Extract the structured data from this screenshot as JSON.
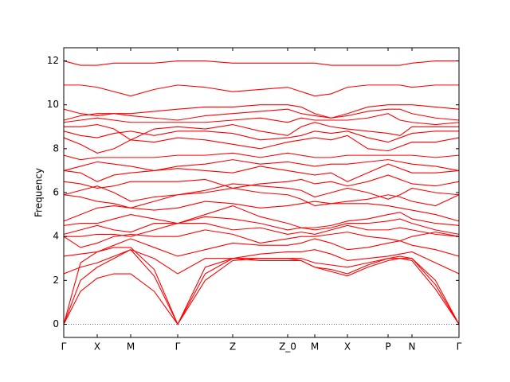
{
  "chart_data": {
    "type": "line",
    "ylabel": "Frequency",
    "x": [
      0,
      21,
      42,
      63,
      84,
      113.5,
      143,
      177.5,
      212,
      246.5,
      281,
      298,
      315,
      335.5,
      356,
      381.5,
      407,
      422,
      437,
      466.5,
      496
    ],
    "xlim": [
      0,
      496
    ],
    "xticks": [
      {
        "value": 0,
        "label": "Γ"
      },
      {
        "value": 42,
        "label": "X"
      },
      {
        "value": 84,
        "label": "M"
      },
      {
        "value": 143,
        "label": "Γ"
      },
      {
        "value": 212,
        "label": "Z"
      },
      {
        "value": 281,
        "label": "Z_0"
      },
      {
        "value": 315,
        "label": "M"
      },
      {
        "value": 356,
        "label": "X"
      },
      {
        "value": 407,
        "label": "P"
      },
      {
        "value": 437,
        "label": "N"
      },
      {
        "value": 496,
        "label": "Γ"
      }
    ],
    "ylim": [
      -0.6,
      12.6
    ],
    "yticks": [
      0,
      2,
      4,
      6,
      8,
      10,
      12
    ],
    "hline": 0,
    "hline_color": "#0000ff",
    "series": [
      {
        "color": "#ff0000",
        "values": [
          0,
          1.5,
          2.1,
          2.3,
          2.3,
          1.5,
          0,
          2.0,
          2.9,
          3.0,
          3.0,
          2.9,
          2.6,
          2.4,
          2.2,
          2.6,
          2.9,
          3.0,
          2.9,
          1.6,
          0
        ]
      },
      {
        "color": "#ff0000",
        "values": [
          0,
          2.0,
          2.6,
          3.0,
          3.4,
          2.2,
          0,
          2.3,
          3.0,
          2.9,
          2.9,
          2.9,
          2.6,
          2.5,
          2.3,
          2.7,
          3.0,
          3.0,
          3.0,
          1.8,
          0
        ]
      },
      {
        "color": "#ff0000",
        "values": [
          0,
          2.8,
          3.3,
          3.5,
          3.5,
          2.5,
          0,
          2.6,
          3.0,
          3.0,
          3.0,
          3.0,
          2.8,
          2.7,
          2.6,
          2.8,
          3.0,
          3.1,
          3.0,
          2.0,
          0
        ]
      },
      {
        "color": "#ff0000",
        "values": [
          2.3,
          2.6,
          2.8,
          3.1,
          3.4,
          3.0,
          2.3,
          3.0,
          3.0,
          3.2,
          3.3,
          3.3,
          3.4,
          3.2,
          2.9,
          3.0,
          3.1,
          3.2,
          3.3,
          2.8,
          2.3
        ]
      },
      {
        "color": "#ff0000",
        "values": [
          3.1,
          3.2,
          3.3,
          3.6,
          3.9,
          3.5,
          3.1,
          3.4,
          3.7,
          3.6,
          3.6,
          3.7,
          3.9,
          3.7,
          3.4,
          3.5,
          3.7,
          3.8,
          3.6,
          3.4,
          3.1
        ]
      },
      {
        "color": "#ff0000",
        "values": [
          4.0,
          3.5,
          3.7,
          4.0,
          4.1,
          4.0,
          4.0,
          4.3,
          4.1,
          3.7,
          3.9,
          4.0,
          4.0,
          4.1,
          4.2,
          4.0,
          3.9,
          3.8,
          4.0,
          4.2,
          4.0
        ]
      },
      {
        "color": "#ff0000",
        "values": [
          4.0,
          4.0,
          4.1,
          4.1,
          4.0,
          4.3,
          4.6,
          4.6,
          4.3,
          4.4,
          4.1,
          4.2,
          4.1,
          4.3,
          4.5,
          4.3,
          4.3,
          4.4,
          4.3,
          4.1,
          4.0
        ]
      },
      {
        "color": "#ff0000",
        "values": [
          4.1,
          4.3,
          4.5,
          4.3,
          4.2,
          4.6,
          4.6,
          4.9,
          4.8,
          4.6,
          4.3,
          4.4,
          4.3,
          4.4,
          4.6,
          4.6,
          4.7,
          4.8,
          4.6,
          4.3,
          4.1
        ]
      },
      {
        "color": "#ff0000",
        "values": [
          4.5,
          4.6,
          4.6,
          4.8,
          5.0,
          4.8,
          4.6,
          5.0,
          5.4,
          4.9,
          4.6,
          4.4,
          4.4,
          4.5,
          4.7,
          4.8,
          5.0,
          5.1,
          4.8,
          4.6,
          4.5
        ]
      },
      {
        "color": "#ff0000",
        "values": [
          4.7,
          5.0,
          5.3,
          5.4,
          5.3,
          5.2,
          5.3,
          5.6,
          5.5,
          5.3,
          5.4,
          5.5,
          5.6,
          5.5,
          5.5,
          5.5,
          5.4,
          5.3,
          5.2,
          5.0,
          4.7
        ]
      },
      {
        "color": "#ff0000",
        "values": [
          5.9,
          5.8,
          5.6,
          5.5,
          5.3,
          5.6,
          5.9,
          6.0,
          6.2,
          6.0,
          5.9,
          5.7,
          5.4,
          5.5,
          5.6,
          5.7,
          5.9,
          5.8,
          5.6,
          5.4,
          5.9
        ]
      },
      {
        "color": "#ff0000",
        "values": [
          5.9,
          6.1,
          6.3,
          6.0,
          5.6,
          5.8,
          5.9,
          6.1,
          6.4,
          6.3,
          6.2,
          6.1,
          5.8,
          6.0,
          6.2,
          6.0,
          5.7,
          5.9,
          6.2,
          6.0,
          5.9
        ]
      },
      {
        "color": "#ff0000",
        "values": [
          6.5,
          6.4,
          6.2,
          6.3,
          6.5,
          6.5,
          6.5,
          6.6,
          6.2,
          6.4,
          6.5,
          6.6,
          6.4,
          6.5,
          6.3,
          6.5,
          6.8,
          6.6,
          6.4,
          6.3,
          6.5
        ]
      },
      {
        "color": "#ff0000",
        "values": [
          7.0,
          6.9,
          6.5,
          6.8,
          6.9,
          7.0,
          7.1,
          7.0,
          6.9,
          7.2,
          7.0,
          6.9,
          6.8,
          6.9,
          6.5,
          6.9,
          7.3,
          7.1,
          6.9,
          6.9,
          7.0
        ]
      },
      {
        "color": "#ff0000",
        "values": [
          7.0,
          7.2,
          7.4,
          7.3,
          7.2,
          7.0,
          7.2,
          7.3,
          7.5,
          7.3,
          7.4,
          7.3,
          7.2,
          7.3,
          7.3,
          7.4,
          7.5,
          7.4,
          7.3,
          7.2,
          7.0
        ]
      },
      {
        "color": "#ff0000",
        "values": [
          7.7,
          7.5,
          7.6,
          7.6,
          7.6,
          7.6,
          7.7,
          7.7,
          7.8,
          7.6,
          7.8,
          7.7,
          7.6,
          7.6,
          7.7,
          7.7,
          7.7,
          7.7,
          7.7,
          7.6,
          7.7
        ]
      },
      {
        "color": "#ff0000",
        "values": [
          8.5,
          8.2,
          7.8,
          8.0,
          8.4,
          8.3,
          8.5,
          8.4,
          8.2,
          8.0,
          8.3,
          8.4,
          8.5,
          8.4,
          8.6,
          8.0,
          7.9,
          8.1,
          8.3,
          8.3,
          8.5
        ]
      },
      {
        "color": "#ff0000",
        "values": [
          8.8,
          8.6,
          8.5,
          8.7,
          8.8,
          8.6,
          8.8,
          8.8,
          8.7,
          8.4,
          8.5,
          8.6,
          8.8,
          8.7,
          8.8,
          8.5,
          8.3,
          8.5,
          8.7,
          8.8,
          8.8
        ]
      },
      {
        "color": "#ff0000",
        "values": [
          9.0,
          9.0,
          9.1,
          8.9,
          8.4,
          8.9,
          9.0,
          8.9,
          9.1,
          8.8,
          8.6,
          9.0,
          9.2,
          9.0,
          8.9,
          8.8,
          8.7,
          8.6,
          9.0,
          9.0,
          9.0
        ]
      },
      {
        "color": "#ff0000",
        "values": [
          9.2,
          9.3,
          9.4,
          9.3,
          9.2,
          9.2,
          9.2,
          9.2,
          9.3,
          9.4,
          9.2,
          9.4,
          9.3,
          9.3,
          9.3,
          9.4,
          9.6,
          9.3,
          9.2,
          9.1,
          9.2
        ]
      },
      {
        "color": "#ff0000",
        "values": [
          9.3,
          9.5,
          9.6,
          9.6,
          9.5,
          9.4,
          9.3,
          9.5,
          9.6,
          9.7,
          9.8,
          9.6,
          9.5,
          9.4,
          9.5,
          9.7,
          9.8,
          9.8,
          9.6,
          9.4,
          9.3
        ]
      },
      {
        "color": "#ff0000",
        "values": [
          9.8,
          9.6,
          9.5,
          9.6,
          9.6,
          9.7,
          9.8,
          9.9,
          9.9,
          10.0,
          10.0,
          9.9,
          9.6,
          9.4,
          9.6,
          9.9,
          10.0,
          10.0,
          10.0,
          9.9,
          9.8
        ]
      },
      {
        "color": "#ff0000",
        "values": [
          10.9,
          10.9,
          10.8,
          10.6,
          10.4,
          10.7,
          10.9,
          10.8,
          10.6,
          10.7,
          10.8,
          10.6,
          10.4,
          10.5,
          10.8,
          10.9,
          10.9,
          10.9,
          10.8,
          10.9,
          10.9
        ]
      },
      {
        "color": "#ff0000",
        "values": [
          12.0,
          11.8,
          11.8,
          11.9,
          11.9,
          11.9,
          12.0,
          12.0,
          11.9,
          11.9,
          11.9,
          11.9,
          11.9,
          11.8,
          11.8,
          11.8,
          11.8,
          11.8,
          11.9,
          12.0,
          12.0
        ]
      }
    ]
  }
}
